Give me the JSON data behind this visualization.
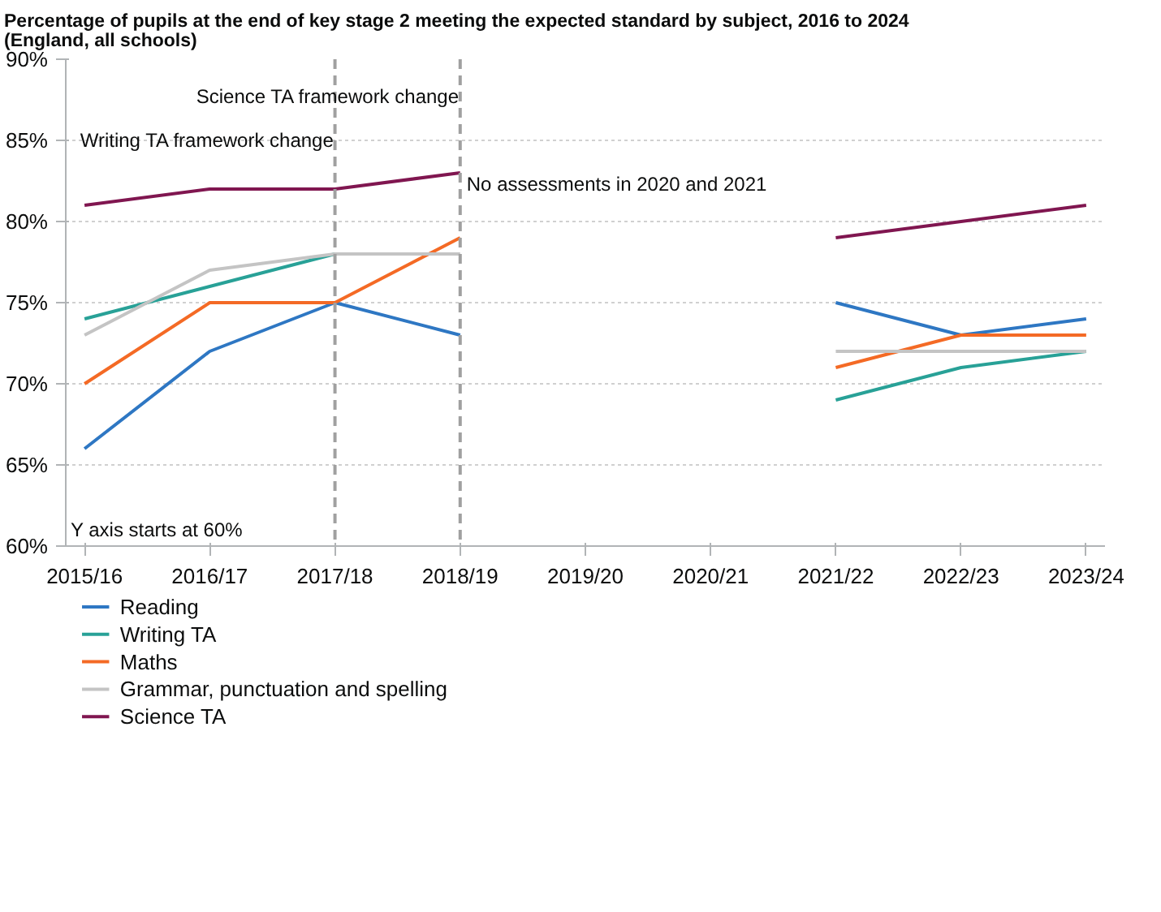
{
  "chart_data": {
    "type": "line",
    "title": "Percentage of pupils at the end of key stage 2 meeting the expected standard by subject, 2016 to 2024\n(England, all schools)",
    "categories": [
      "2015/16",
      "2016/17",
      "2017/18",
      "2018/19",
      "2019/20",
      "2020/21",
      "2021/22",
      "2022/23",
      "2023/24"
    ],
    "series": [
      {
        "name": "Reading",
        "color": "#2e77c3",
        "values": [
          66,
          72,
          75,
          73,
          null,
          null,
          75,
          73,
          74
        ]
      },
      {
        "name": "Writing TA",
        "color": "#28a197",
        "values": [
          74,
          76,
          78,
          null,
          null,
          null,
          69,
          71,
          72
        ]
      },
      {
        "name": "Maths",
        "color": "#f46a25",
        "values": [
          70,
          75,
          75,
          79,
          null,
          null,
          71,
          73,
          73
        ]
      },
      {
        "name": "Grammar, punctuation and spelling",
        "color": "#c4c4c4",
        "values": [
          73,
          77,
          78,
          78,
          null,
          null,
          72,
          72,
          72
        ]
      },
      {
        "name": "Science TA",
        "color": "#801650",
        "values": [
          81,
          82,
          82,
          83,
          null,
          null,
          79,
          80,
          81
        ]
      }
    ],
    "ylim": [
      60,
      90
    ],
    "yticks": [
      {
        "value": 60,
        "label": "60%"
      },
      {
        "value": 65,
        "label": "65%"
      },
      {
        "value": 70,
        "label": "70%"
      },
      {
        "value": 75,
        "label": "75%"
      },
      {
        "value": 80,
        "label": "80%"
      },
      {
        "value": 85,
        "label": "85%"
      },
      {
        "value": 90,
        "label": "90%"
      }
    ],
    "ref_lines": [
      {
        "axis": "x",
        "value": "2017/18",
        "label": "Writing TA framework change",
        "color": "#a0a0a0",
        "line_style": "dashed"
      },
      {
        "axis": "x",
        "value": "2018/19",
        "label": "Science TA framework change",
        "color": "#a0a0a0",
        "line_style": "dashed"
      }
    ],
    "annotations": [
      {
        "text": "No assessments in 2020 and 2021",
        "x": "2018/19",
        "y": 82
      },
      "Y axis starts at 60%"
    ],
    "grid": "y",
    "legend": "bottom",
    "marker": "none",
    "line_style": "solid"
  }
}
